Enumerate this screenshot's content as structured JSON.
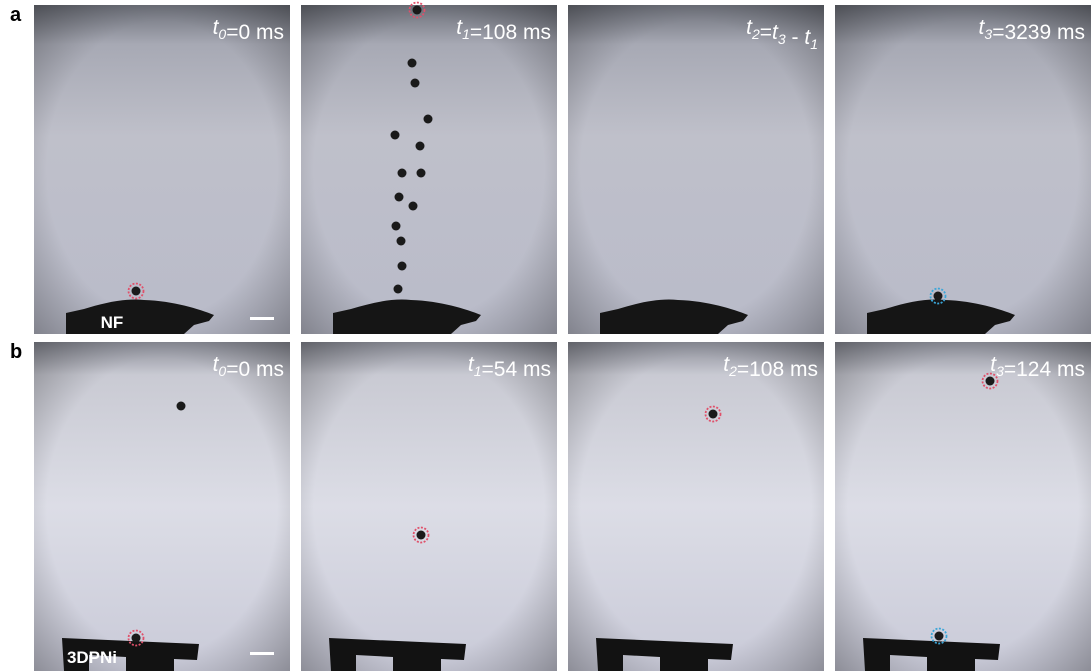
{
  "rows": [
    {
      "label": "a",
      "substrate": "NF",
      "panels": [
        {
          "time": [
            {
              "var": "t",
              "sub": "0"
            },
            "=0 ms"
          ]
        },
        {
          "time": [
            {
              "var": "t",
              "sub": "1"
            },
            "=108 ms"
          ]
        },
        {
          "time": [
            {
              "var": "t",
              "sub": "2"
            },
            "=",
            {
              "var": "t",
              "sub": "3"
            },
            " - ",
            {
              "var": "t",
              "sub": "1"
            }
          ]
        },
        {
          "time": [
            {
              "var": "t",
              "sub": "3"
            },
            "=3239 ms"
          ]
        }
      ]
    },
    {
      "label": "b",
      "substrate": "3DPNi",
      "panels": [
        {
          "time": [
            {
              "var": "t",
              "sub": "0"
            },
            "=0 ms"
          ]
        },
        {
          "time": [
            {
              "var": "t",
              "sub": "1"
            },
            "=54 ms"
          ]
        },
        {
          "time": [
            {
              "var": "t",
              "sub": "2"
            },
            "=108 ms"
          ]
        },
        {
          "time": [
            {
              "var": "t",
              "sub": "3"
            },
            "=124 ms"
          ]
        }
      ]
    }
  ]
}
